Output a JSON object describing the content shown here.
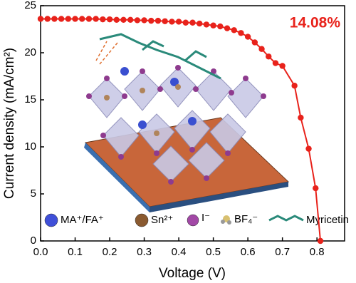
{
  "chart_data": {
    "type": "line",
    "xlabel": "Voltage (V)",
    "ylabel": "Current density (mA/cm²)",
    "annotation": "14.08%",
    "inset_legend": [
      "MA⁺/FA⁺",
      "Sn²⁺",
      "I⁻",
      "BF₄⁻",
      "Myricetin"
    ],
    "x": [
      0,
      0.02,
      0.04,
      0.06,
      0.08,
      0.1,
      0.12,
      0.14,
      0.16,
      0.18,
      0.2,
      0.22,
      0.24,
      0.26,
      0.28,
      0.3,
      0.32,
      0.34,
      0.36,
      0.38,
      0.4,
      0.42,
      0.44,
      0.46,
      0.48,
      0.5,
      0.52,
      0.54,
      0.56,
      0.58,
      0.6,
      0.62,
      0.64,
      0.66,
      0.68,
      0.7,
      0.735,
      0.753,
      0.776,
      0.796,
      0.81
    ],
    "series": [
      {
        "name": "J-V",
        "color": "#e8221b",
        "values": [
          23.6,
          23.6,
          23.6,
          23.6,
          23.6,
          23.6,
          23.6,
          23.6,
          23.6,
          23.55,
          23.55,
          23.5,
          23.5,
          23.5,
          23.45,
          23.45,
          23.4,
          23.4,
          23.35,
          23.3,
          23.3,
          23.2,
          23.2,
          23.1,
          23.0,
          22.9,
          22.8,
          22.6,
          22.4,
          22.1,
          21.7,
          21.1,
          20.4,
          19.6,
          18.9,
          18.6,
          16.5,
          13.1,
          9.8,
          5.6,
          0
        ]
      }
    ],
    "xlim": [
      0,
      0.88
    ],
    "xticks": [
      {
        "value": 0,
        "label": "0.0"
      },
      0.1,
      0.2,
      0.3,
      0.4,
      0.5,
      0.6,
      0.7,
      0.8
    ],
    "ylim": [
      0,
      25
    ],
    "yticks": [
      0,
      5,
      10,
      15,
      20,
      25
    ]
  }
}
